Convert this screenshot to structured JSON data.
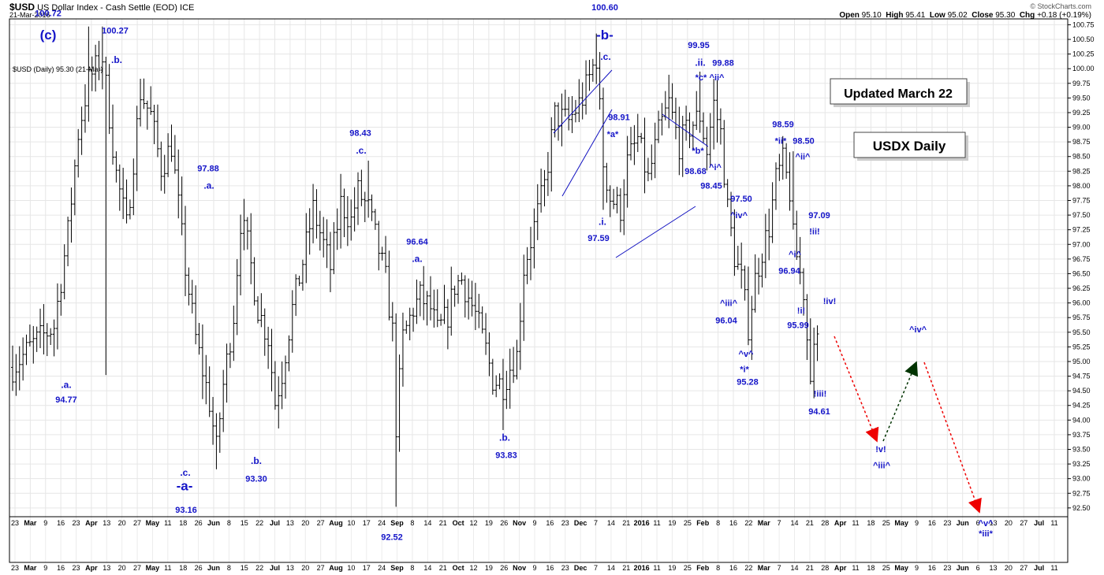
{
  "header": {
    "symbol": "$USD",
    "name": "US Dollar Index - Cash Settle (EOD)",
    "exchange": "ICE",
    "date": "21-Mar-2016",
    "source": "© StockCharts.com",
    "ohlc": {
      "open_label": "Open",
      "open": "95.10",
      "high_label": "High",
      "high": "95.41",
      "low_label": "Low",
      "low": "95.02",
      "close_label": "Close",
      "close": "95.30",
      "chg_label": "Chg",
      "chg": "+0.18 (+0.19%)"
    }
  },
  "legend_text": "$USD (Daily) 95.30 (21-Mar)",
  "boxes": [
    {
      "text": "Updated March 22"
    },
    {
      "text": "USDX Daily"
    }
  ],
  "chart_data": {
    "type": "ohlc",
    "y_range": [
      92.35,
      100.85
    ],
    "y_ticks": [
      "92.50",
      "92.75",
      "93.00",
      "93.25",
      "93.50",
      "93.75",
      "94.00",
      "94.25",
      "94.50",
      "94.75",
      "95.00",
      "95.25",
      "95.50",
      "95.75",
      "96.00",
      "96.25",
      "96.50",
      "96.75",
      "97.00",
      "97.25",
      "97.50",
      "97.75",
      "98.00",
      "98.25",
      "98.50",
      "98.75",
      "99.00",
      "99.25",
      "99.50",
      "99.75",
      "100.00",
      "100.25",
      "100.50",
      "100.75"
    ],
    "x_ticks": [
      "23",
      "Mar",
      "9",
      "16",
      "23",
      "Apr",
      "13",
      "20",
      "27",
      "May",
      "11",
      "18",
      "26",
      "Jun",
      "8",
      "15",
      "22",
      "Jul",
      "13",
      "20",
      "27",
      "Aug",
      "10",
      "17",
      "24",
      "Sep",
      "8",
      "14",
      "21",
      "Oct",
      "12",
      "19",
      "26",
      "Nov",
      "9",
      "16",
      "23",
      "Dec",
      "7",
      "14",
      "21",
      "2016",
      "11",
      "19",
      "25",
      "Feb",
      "8",
      "16",
      "22",
      "Mar",
      "7",
      "14",
      "21",
      "28",
      "Apr",
      "11",
      "18",
      "25",
      "May",
      "9",
      "16",
      "23",
      "Jun",
      "6",
      "13",
      "20",
      "27",
      "Jul",
      "11"
    ],
    "x_tick_bold": [
      "Mar",
      "Apr",
      "May",
      "Jun",
      "Jul",
      "Aug",
      "Sep",
      "Oct",
      "Nov",
      "Dec",
      "2016",
      "Feb"
    ],
    "anchors": [
      {
        "x": 0,
        "v": 94.9
      },
      {
        "x": 6,
        "v": 95.3
      },
      {
        "x": 12,
        "v": 95.6
      },
      {
        "x": 16,
        "v": 97.2
      },
      {
        "x": 19,
        "v": 98.9
      },
      {
        "x": 22,
        "v": 99.8
      },
      {
        "x": 26,
        "v": 100.2
      },
      {
        "x": 30,
        "v": 98.2
      },
      {
        "x": 33,
        "v": 97.3
      },
      {
        "x": 37,
        "v": 99.6
      },
      {
        "x": 40,
        "v": 99.2
      },
      {
        "x": 43,
        "v": 98.3
      },
      {
        "x": 46,
        "v": 98.7
      },
      {
        "x": 50,
        "v": 96.6
      },
      {
        "x": 53,
        "v": 95.4
      },
      {
        "x": 57,
        "v": 94.3
      },
      {
        "x": 59,
        "v": 93.5
      },
      {
        "x": 61,
        "v": 94.6
      },
      {
        "x": 64,
        "v": 95.8
      },
      {
        "x": 66,
        "v": 97.4
      },
      {
        "x": 68,
        "v": 97.0
      },
      {
        "x": 71,
        "v": 95.9
      },
      {
        "x": 74,
        "v": 95.4
      },
      {
        "x": 76,
        "v": 94.3
      },
      {
        "x": 78,
        "v": 94.8
      },
      {
        "x": 81,
        "v": 95.9
      },
      {
        "x": 84,
        "v": 96.7
      },
      {
        "x": 87,
        "v": 97.6
      },
      {
        "x": 90,
        "v": 97.0
      },
      {
        "x": 92,
        "v": 96.6
      },
      {
        "x": 95,
        "v": 97.7
      },
      {
        "x": 98,
        "v": 97.4
      },
      {
        "x": 100,
        "v": 97.9
      },
      {
        "x": 103,
        "v": 97.6
      },
      {
        "x": 106,
        "v": 96.9
      },
      {
        "x": 108,
        "v": 96.4
      },
      {
        "x": 110,
        "v": 95.5
      },
      {
        "x": 111,
        "v": 93.9
      },
      {
        "x": 113,
        "v": 95.4
      },
      {
        "x": 116,
        "v": 95.9
      },
      {
        "x": 118,
        "v": 96.1
      },
      {
        "x": 121,
        "v": 95.9
      },
      {
        "x": 123,
        "v": 95.5
      },
      {
        "x": 126,
        "v": 95.8
      },
      {
        "x": 128,
        "v": 96.3
      },
      {
        "x": 130,
        "v": 96.4
      },
      {
        "x": 132,
        "v": 96.1
      },
      {
        "x": 134,
        "v": 95.8
      },
      {
        "x": 137,
        "v": 95.2
      },
      {
        "x": 139,
        "v": 94.7
      },
      {
        "x": 142,
        "v": 94.6
      },
      {
        "x": 144,
        "v": 94.9
      },
      {
        "x": 146,
        "v": 95.1
      },
      {
        "x": 148,
        "v": 96.6
      },
      {
        "x": 151,
        "v": 97.3
      },
      {
        "x": 154,
        "v": 98.0
      },
      {
        "x": 157,
        "v": 99.2
      },
      {
        "x": 161,
        "v": 99.1
      },
      {
        "x": 165,
        "v": 99.5
      },
      {
        "x": 169,
        "v": 100.2
      },
      {
        "x": 171,
        "v": 98.4
      },
      {
        "x": 173,
        "v": 97.8
      },
      {
        "x": 176,
        "v": 97.6
      },
      {
        "x": 178,
        "v": 98.4
      },
      {
        "x": 181,
        "v": 98.8
      },
      {
        "x": 184,
        "v": 98.1
      },
      {
        "x": 187,
        "v": 98.9
      },
      {
        "x": 190,
        "v": 99.4
      },
      {
        "x": 193,
        "v": 98.7
      },
      {
        "x": 196,
        "v": 99.0
      },
      {
        "x": 199,
        "v": 99.2
      },
      {
        "x": 201,
        "v": 98.6
      },
      {
        "x": 203,
        "v": 99.4
      },
      {
        "x": 205,
        "v": 98.9
      },
      {
        "x": 207,
        "v": 97.6
      },
      {
        "x": 209,
        "v": 96.8
      },
      {
        "x": 211,
        "v": 96.4
      },
      {
        "x": 213,
        "v": 95.6
      },
      {
        "x": 215,
        "v": 96.4
      },
      {
        "x": 217,
        "v": 96.9
      },
      {
        "x": 219,
        "v": 97.3
      },
      {
        "x": 221,
        "v": 98.1
      },
      {
        "x": 223,
        "v": 98.4
      },
      {
        "x": 225,
        "v": 97.9
      },
      {
        "x": 226,
        "v": 97.1
      },
      {
        "x": 227,
        "v": 96.8
      },
      {
        "x": 229,
        "v": 96.2
      },
      {
        "x": 230,
        "v": 95.4
      },
      {
        "x": 231,
        "v": 94.9
      },
      {
        "x": 232,
        "v": 95.1
      },
      {
        "x": 233,
        "v": 95.3
      }
    ],
    "labels": [
      {
        "text": "100.72",
        "x": 61,
        "v": 100.9,
        "size": 11
      },
      {
        "text": "(c)",
        "x": 61,
        "v": 100.5,
        "size": 17
      },
      {
        "text": ".a.",
        "x": 84,
        "v": 94.55,
        "size": 12
      },
      {
        "text": "94.77",
        "x": 84,
        "v": 94.3,
        "size": 11
      },
      {
        "text": "100.27",
        "x": 146,
        "v": 100.6,
        "size": 11
      },
      {
        "text": ".b.",
        "x": 148,
        "v": 100.1,
        "size": 12
      },
      {
        "text": ".c.",
        "x": 235,
        "v": 93.05,
        "size": 12
      },
      {
        "text": "-a-",
        "x": 234,
        "v": 92.8,
        "size": 17
      },
      {
        "text": "93.16",
        "x": 236,
        "v": 92.42,
        "size": 11
      },
      {
        "text": "97.88",
        "x": 264,
        "v": 98.25,
        "size": 11
      },
      {
        "text": ".a.",
        "x": 265,
        "v": 97.95,
        "size": 12
      },
      {
        "text": ".b.",
        "x": 325,
        "v": 93.25,
        "size": 12
      },
      {
        "text": "93.30",
        "x": 325,
        "v": 92.95,
        "size": 11
      },
      {
        "text": "98.43",
        "x": 457,
        "v": 98.85,
        "size": 11
      },
      {
        "text": ".c.",
        "x": 458,
        "v": 98.55,
        "size": 12
      },
      {
        "text": "92.52",
        "x": 497,
        "v": 91.95,
        "size": 11
      },
      {
        "text": "96.64",
        "x": 529,
        "v": 97.0,
        "size": 11
      },
      {
        "text": ".a.",
        "x": 529,
        "v": 96.7,
        "size": 12
      },
      {
        "text": ".b.",
        "x": 640,
        "v": 93.65,
        "size": 12
      },
      {
        "text": "93.83",
        "x": 642,
        "v": 93.35,
        "size": 11
      },
      {
        "text": "100.60",
        "x": 767,
        "v": 101.0,
        "size": 11
      },
      {
        "text": "-b-",
        "x": 767,
        "v": 100.5,
        "size": 17
      },
      {
        "text": ".c.",
        "x": 768,
        "v": 100.15,
        "size": 12
      },
      {
        "text": "98.91",
        "x": 785,
        "v": 99.12,
        "size": 11
      },
      {
        "text": "*a*",
        "x": 777,
        "v": 98.83,
        "size": 11
      },
      {
        "text": ".i.",
        "x": 764,
        "v": 97.33,
        "size": 12
      },
      {
        "text": "97.59",
        "x": 759,
        "v": 97.06,
        "size": 11
      },
      {
        "text": "99.95",
        "x": 886,
        "v": 100.35,
        "size": 11
      },
      {
        "text": ".ii.",
        "x": 888,
        "v": 100.05,
        "size": 12
      },
      {
        "text": "*c*",
        "x": 889,
        "v": 99.8,
        "size": 11
      },
      {
        "text": "99.88",
        "x": 917,
        "v": 100.05,
        "size": 11
      },
      {
        "text": "^ii^",
        "x": 909,
        "v": 99.8,
        "size": 11
      },
      {
        "text": "*b*",
        "x": 885,
        "v": 98.55,
        "size": 11
      },
      {
        "text": "^i^",
        "x": 907,
        "v": 98.27,
        "size": 11
      },
      {
        "text": "98.68",
        "x": 882,
        "v": 98.2,
        "size": 11
      },
      {
        "text": "98.45",
        "x": 902,
        "v": 97.95,
        "size": 11
      },
      {
        "text": "97.50",
        "x": 940,
        "v": 97.73,
        "size": 11
      },
      {
        "text": "^iv^",
        "x": 937,
        "v": 97.45,
        "size": 11
      },
      {
        "text": "^iii^",
        "x": 924,
        "v": 95.95,
        "size": 11
      },
      {
        "text": "96.04",
        "x": 921,
        "v": 95.65,
        "size": 11
      },
      {
        "text": "^v^",
        "x": 946,
        "v": 95.08,
        "size": 11
      },
      {
        "text": "*i*",
        "x": 944,
        "v": 94.82,
        "size": 11
      },
      {
        "text": "95.28",
        "x": 948,
        "v": 94.6,
        "size": 11
      },
      {
        "text": "98.59",
        "x": 993,
        "v": 99.0,
        "size": 11
      },
      {
        "text": "*ii*",
        "x": 990,
        "v": 98.72,
        "size": 11
      },
      {
        "text": "98.50",
        "x": 1019,
        "v": 98.72,
        "size": 11
      },
      {
        "text": "^ii^",
        "x": 1018,
        "v": 98.45,
        "size": 11
      },
      {
        "text": "97.09",
        "x": 1039,
        "v": 97.45,
        "size": 11
      },
      {
        "text": "!ii!",
        "x": 1033,
        "v": 97.17,
        "size": 11
      },
      {
        "text": "^i^",
        "x": 1008,
        "v": 96.78,
        "size": 11
      },
      {
        "text": "96.94",
        "x": 1001,
        "v": 96.5,
        "size": 11
      },
      {
        "text": "!i!",
        "x": 1016,
        "v": 95.82,
        "size": 11
      },
      {
        "text": "95.99",
        "x": 1012,
        "v": 95.57,
        "size": 11
      },
      {
        "text": "!iv!",
        "x": 1052,
        "v": 95.98,
        "size": 11
      },
      {
        "text": "!iii!",
        "x": 1040,
        "v": 94.4,
        "size": 11
      },
      {
        "text": "94.61",
        "x": 1039,
        "v": 94.1,
        "size": 11
      },
      {
        "text": "!v!",
        "x": 1117,
        "v": 93.45,
        "size": 11
      },
      {
        "text": "^iii^",
        "x": 1118,
        "v": 93.18,
        "size": 11
      },
      {
        "text": "^iv^",
        "x": 1164,
        "v": 95.5,
        "size": 11
      }
    ],
    "lower_labels": [
      {
        "text": "^v^",
        "x": 1250,
        "row": 0
      },
      {
        "text": "*iii*",
        "x": 1250,
        "row": 1
      }
    ]
  }
}
